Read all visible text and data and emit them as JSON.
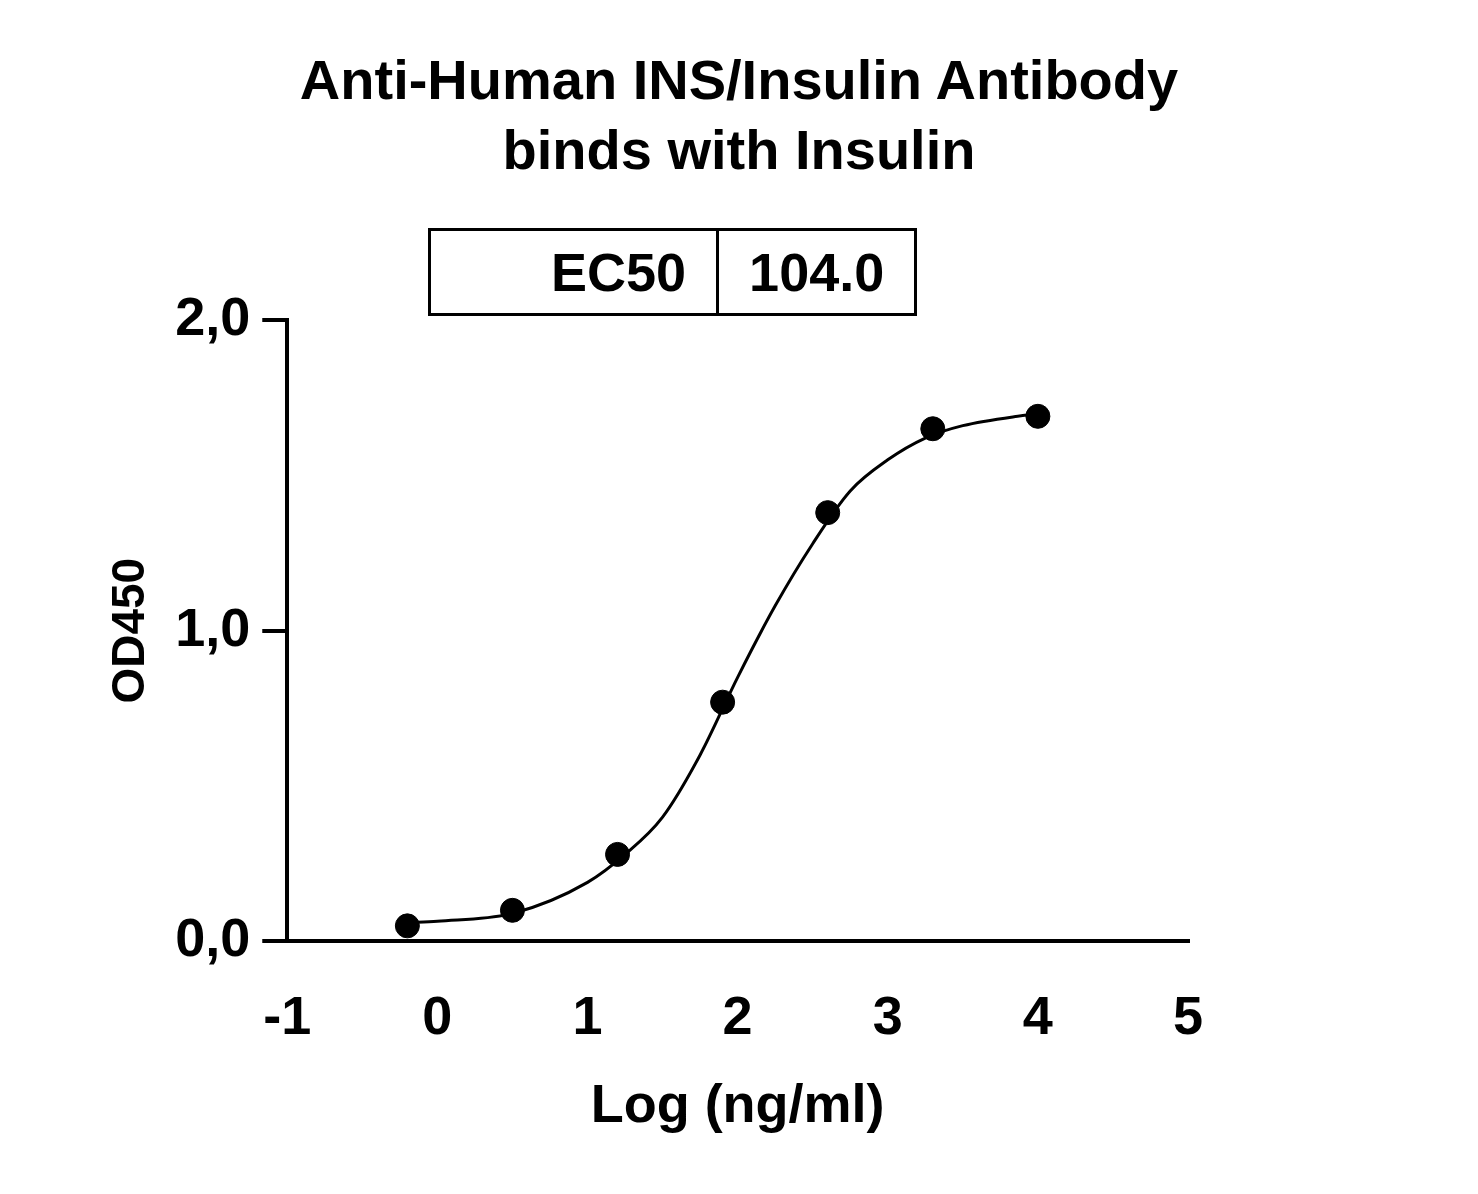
{
  "chart_data": {
    "type": "scatter",
    "title": "Anti-Human INS/Insulin Antibody",
    "subtitle": "binds with Insulin",
    "xlabel": "Log (ng/ml)",
    "ylabel": "OD450",
    "annotations": [
      "EC50",
      "104.0"
    ],
    "xlim": [
      -1,
      5
    ],
    "xticks": [
      -1,
      0,
      1,
      2,
      3,
      4,
      5
    ],
    "ylim": [
      0,
      2
    ],
    "yticks": [
      {
        "value": 0,
        "label": "0,0"
      },
      {
        "value": 1,
        "label": "1,0"
      },
      {
        "value": 2,
        "label": "2,0"
      }
    ],
    "grid": false,
    "legend": false,
    "marker": "circle",
    "series": [
      {
        "type": "scatter",
        "color": "#000000",
        "x": [
          -0.2,
          0.5,
          1.2,
          1.9,
          2.6,
          3.3,
          4.0
        ],
        "values": [
          0.05,
          0.1,
          0.28,
          0.77,
          1.38,
          1.65,
          1.69
        ]
      },
      {
        "type": "line",
        "color": "#000000",
        "marker": "none",
        "line_style": "solid",
        "x": [
          -0.2,
          0.0,
          0.5,
          1.0,
          1.25,
          1.5,
          1.75,
          2.0,
          2.25,
          2.5,
          2.75,
          3.0,
          3.25,
          3.5,
          4.0
        ],
        "values": [
          0.06,
          0.065,
          0.09,
          0.19,
          0.28,
          0.4,
          0.6,
          0.85,
          1.08,
          1.28,
          1.45,
          1.55,
          1.62,
          1.66,
          1.7
        ]
      }
    ]
  }
}
